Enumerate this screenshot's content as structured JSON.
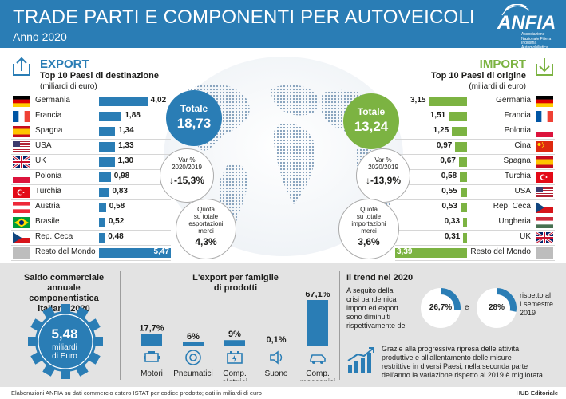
{
  "header": {
    "title": "TRADE PARTI E COMPONENTI PER AUTOVEICOLI",
    "subtitle": "Anno 2020",
    "logo_text": "ANFIA",
    "logo_subtext": "Associazione Nazionale Filiera Industria Automobilistica"
  },
  "colors": {
    "export": "#2a7db5",
    "import": "#7cb342",
    "header_bg": "#2a7db5",
    "panel_bg": "#e3e3e3"
  },
  "export": {
    "heading": "EXPORT",
    "subheading": "Top 10 Paesi di destinazione",
    "unit": "(miliardi di euro)",
    "total_label": "Totale",
    "total_value": "18,73",
    "var_label_1": "Var %",
    "var_label_2": "2020/2019",
    "var_value": "-15,3%",
    "quota_label_1": "Quota",
    "quota_label_2": "su totale",
    "quota_label_3": "esportazioni",
    "quota_label_4": "merci",
    "quota_value": "4,3%"
  },
  "import": {
    "heading": "IMPORT",
    "subheading": "Top 10 Paesi di origine",
    "unit": "(miliardi di euro)",
    "total_label": "Totale",
    "total_value": "13,24",
    "var_label_1": "Var %",
    "var_label_2": "2020/2019",
    "var_value": "-13,9%",
    "quota_label_1": "Quota",
    "quota_label_2": "su totale",
    "quota_label_3": "importazioni",
    "quota_label_4": "merci",
    "quota_value": "3,6%"
  },
  "chart_data": [
    {
      "type": "bar",
      "title": "Top 10 Paesi di destinazione",
      "unit": "miliardi di euro",
      "categories": [
        "Germania",
        "Francia",
        "Spagna",
        "USA",
        "UK",
        "Polonia",
        "Turchia",
        "Austria",
        "Brasile",
        "Rep. Ceca",
        "Resto del Mondo"
      ],
      "values": [
        4.02,
        1.88,
        1.34,
        1.33,
        1.3,
        0.98,
        0.83,
        0.58,
        0.52,
        0.48,
        5.47
      ],
      "labels": [
        "4,02",
        "1,88",
        "1,34",
        "1,33",
        "1,30",
        "0,98",
        "0,83",
        "0,58",
        "0,52",
        "0,48",
        "5,47"
      ],
      "flags": [
        "de",
        "fr",
        "es",
        "us",
        "uk",
        "pl",
        "tr",
        "at",
        "br",
        "cz",
        "none"
      ]
    },
    {
      "type": "bar",
      "title": "Top 10 Paesi di origine",
      "unit": "miliardi di euro",
      "categories": [
        "Germania",
        "Francia",
        "Polonia",
        "Cina",
        "Spagna",
        "Turchia",
        "USA",
        "Rep. Ceca",
        "Ungheria",
        "UK",
        "Resto del Mondo"
      ],
      "values": [
        3.15,
        1.51,
        1.25,
        0.97,
        0.67,
        0.58,
        0.55,
        0.53,
        0.33,
        0.31,
        3.39
      ],
      "labels": [
        "3,15",
        "1,51",
        "1,25",
        "0,97",
        "0,67",
        "0,58",
        "0,55",
        "0,53",
        "0,33",
        "0,31",
        "3,39"
      ],
      "flags": [
        "de",
        "fr",
        "pl",
        "cn",
        "es",
        "tr",
        "us",
        "cz",
        "hu",
        "uk",
        "none"
      ]
    },
    {
      "type": "bar",
      "title": "L'export per famiglie di prodotti",
      "categories": [
        "Motori",
        "Pneumatici",
        "Comp. elettrici",
        "Suono",
        "Comp. meccanici"
      ],
      "values": [
        17.7,
        6,
        9,
        0.1,
        67.1
      ],
      "labels": [
        "17,7%",
        "6%",
        "9%",
        "0,1%",
        "67,1%"
      ],
      "icons": [
        "engine-icon",
        "tire-icon",
        "battery-icon",
        "speaker-icon",
        "car-icon"
      ]
    }
  ],
  "saldo": {
    "title_1": "Saldo commerciale",
    "title_2": "annuale componentistica",
    "title_3": "italiana 2020",
    "value": "5,48",
    "unit_1": "miliardi",
    "unit_2": "di Euro"
  },
  "families": {
    "title_1": "L'export per famiglie",
    "title_2": "di prodotti",
    "label_elettrici_1": "Comp.",
    "label_elettrici_2": "elettrici",
    "label_meccanici_1": "Comp.",
    "label_meccanici_2": "meccanici"
  },
  "trend": {
    "title": "Il trend nel 2020",
    "text_1": "A seguito della",
    "text_2": "crisi pandemica",
    "text_3": "import ed export",
    "text_4": "sono diminuiti",
    "text_5": "rispettivamente del",
    "donut_1": "26,7%",
    "donut_1_fraction": 0.267,
    "conj": "e",
    "donut_2": "28%",
    "donut_2_fraction": 0.28,
    "after_1": "rispetto al",
    "after_2": "I semestre",
    "after_3": "2019",
    "growth_1": "Grazie alla progressiva ripresa delle attività",
    "growth_2": "produttive e all'allentamento delle misure",
    "growth_3": "restrittive in diversi Paesi, nella seconda parte",
    "growth_4": "dell'anno la variazione rispetto al 2019 è migliorata"
  },
  "footer": {
    "source": "Elaborazioni ANFIA su dati commercio estero ISTAT per codice prodotto; dati in miliardi di euro",
    "credit": "HUB Editoriale"
  }
}
